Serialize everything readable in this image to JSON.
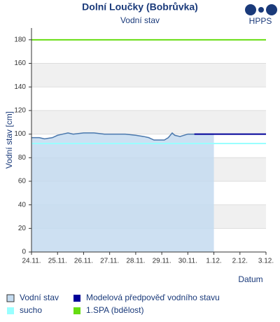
{
  "chart_data": {
    "type": "area",
    "title": "Dolní Loučky (Bobrůvka)",
    "subtitle": "Vodní stav",
    "logo": "HPPS",
    "ylabel": "Vodní stav [cm]",
    "xlabel": "Datum",
    "ylim": [
      0,
      190
    ],
    "yticks": [
      0,
      20,
      40,
      60,
      80,
      100,
      120,
      140,
      160,
      180
    ],
    "xlim": [
      0,
      9
    ],
    "xticks": [
      {
        "value": 0,
        "label": "24.11."
      },
      {
        "value": 1,
        "label": "25.11."
      },
      {
        "value": 2,
        "label": "26.11."
      },
      {
        "value": 3,
        "label": "27.11."
      },
      {
        "value": 4,
        "label": "28.11."
      },
      {
        "value": 5,
        "label": "29.11."
      },
      {
        "value": 6,
        "label": "30.11."
      },
      {
        "value": 7,
        "label": "1.12."
      },
      {
        "value": 8,
        "label": "2.12."
      },
      {
        "value": 9,
        "label": "3.12."
      }
    ],
    "grid": true,
    "series": [
      {
        "name": "Vodní stav",
        "color": "#4a78ad",
        "fill": "#c4dbf0",
        "x": [
          0,
          0.3,
          0.5,
          0.8,
          1.0,
          1.2,
          1.4,
          1.6,
          2.0,
          2.4,
          2.8,
          3.2,
          3.6,
          4.0,
          4.3,
          4.5,
          4.7,
          4.9,
          5.1,
          5.25,
          5.4,
          5.5,
          5.7,
          6.0,
          6.4,
          6.8,
          7.0
        ],
        "values": [
          97,
          97,
          96,
          97,
          99,
          100,
          101,
          100,
          101,
          101,
          100,
          100,
          100,
          99,
          98,
          97,
          95,
          95,
          95,
          97,
          101,
          99,
          98,
          100,
          100,
          100,
          100
        ]
      },
      {
        "name": "sucho",
        "color": "#99ffff",
        "x": [
          0,
          9
        ],
        "values": [
          92,
          92
        ]
      },
      {
        "name": "Modelová předpověď vodního stavu",
        "color": "#000099",
        "x": [
          6.25,
          9
        ],
        "values": [
          100,
          100
        ]
      },
      {
        "name": "1.SPA (bdělost)",
        "color": "#66dd11",
        "x": [
          0,
          9
        ],
        "values": [
          180,
          180
        ]
      }
    ]
  }
}
